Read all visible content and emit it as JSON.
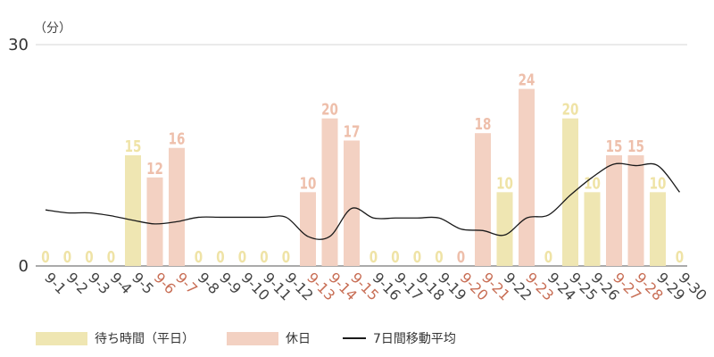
{
  "colors": {
    "weekday": "#efe6b2",
    "holiday": "#f3d1c2",
    "weekday_label": "#efe3a6",
    "holiday_label": "#eebfab",
    "holiday_tick": "#c86e55",
    "weekday_tick": "#444444",
    "line": "#1a1a1a",
    "grid": "#d6d6d6",
    "axis": "#555555"
  },
  "legend": {
    "weekday": "待ち時間（平日）",
    "holiday": "休日",
    "line": "7日間移動平均"
  },
  "chart_data": {
    "type": "bar",
    "unit_label": "（分）",
    "ylim": [
      0,
      30
    ],
    "yticks": [
      "0",
      "30"
    ],
    "categories": [
      "9-1",
      "9-2",
      "9-3",
      "9-4",
      "9-5",
      "9-6",
      "9-7",
      "9-8",
      "9-9",
      "9-10",
      "9-11",
      "9-12",
      "9-13",
      "9-14",
      "9-15",
      "9-16",
      "9-17",
      "9-18",
      "9-19",
      "9-20",
      "9-21",
      "9-22",
      "9-23",
      "9-24",
      "9-25",
      "9-26",
      "9-27",
      "9-28",
      "9-29",
      "9-30"
    ],
    "values": [
      0,
      0,
      0,
      0,
      15,
      12,
      16,
      0,
      0,
      0,
      0,
      0,
      10,
      20,
      17,
      0,
      0,
      0,
      0,
      0,
      18,
      10,
      24,
      0,
      20,
      10,
      15,
      15,
      10,
      0
    ],
    "value_labels": [
      "0",
      "0",
      "0",
      "0",
      "15",
      "12",
      "16",
      "0",
      "0",
      "0",
      "0",
      "0",
      "10",
      "20",
      "17",
      "0",
      "0",
      "0",
      "0",
      "0",
      "18",
      "10",
      "24",
      "0",
      "20",
      "10",
      "15",
      "15",
      "10",
      "0"
    ],
    "day_type": [
      "weekday",
      "weekday",
      "weekday",
      "weekday",
      "weekday",
      "holiday",
      "holiday",
      "weekday",
      "weekday",
      "weekday",
      "weekday",
      "weekday",
      "holiday",
      "holiday",
      "holiday",
      "weekday",
      "weekday",
      "weekday",
      "weekday",
      "holiday",
      "holiday",
      "weekday",
      "holiday",
      "weekday",
      "weekday",
      "weekday",
      "holiday",
      "holiday",
      "weekday",
      "weekday"
    ],
    "series": [
      {
        "name": "待ち時間（平日）",
        "kind": "bar",
        "day_type": "weekday"
      },
      {
        "name": "休日",
        "kind": "bar",
        "day_type": "holiday"
      },
      {
        "name": "7日間移動平均",
        "kind": "line",
        "values": [
          7.6,
          7.2,
          7.2,
          6.8,
          6.2,
          5.7,
          6.0,
          6.6,
          6.6,
          6.6,
          6.6,
          6.6,
          4.0,
          4.0,
          7.8,
          6.5,
          6.5,
          6.5,
          6.5,
          5.0,
          4.8,
          4.2,
          6.5,
          6.9,
          9.6,
          12.0,
          13.8,
          13.6,
          13.6,
          10.0
        ]
      }
    ],
    "grid": true,
    "legend_position": "bottom-left"
  }
}
